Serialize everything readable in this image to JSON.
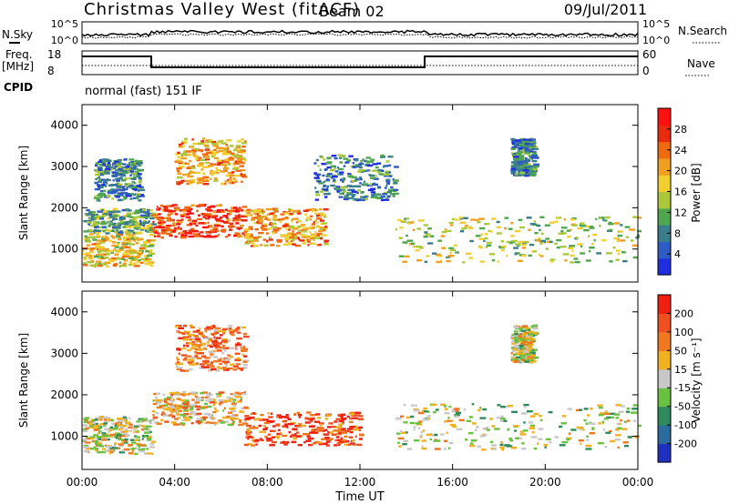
{
  "header": {
    "station": "Christmas Valley West (fitACF)",
    "beam": "Beam 02",
    "date": "09/Jul/2011"
  },
  "top_panels": {
    "nsky_label": "N.Sky",
    "nsearch_label": "N.Search",
    "freq_label_1": "Freq.",
    "freq_label_2": "[MHz]",
    "nave_label": "Nave",
    "cpid_label": "CPID",
    "cpid_text": "normal (fast) 151 IF",
    "noise_ticks": [
      "10^5",
      "10^0"
    ],
    "freq_ticks": [
      "18",
      "8"
    ],
    "nave_ticks": [
      "60",
      "0"
    ]
  },
  "chart_data": [
    {
      "type": "heatmap",
      "title": "",
      "xlabel": "",
      "ylabel": "Slant Range [km]",
      "x_ticks": [
        "00:00",
        "04:00",
        "08:00",
        "12:00",
        "16:00",
        "20:00",
        "00:00"
      ],
      "y_ticks": [
        "1000",
        "2000",
        "3000",
        "4000"
      ],
      "ylim": [
        200,
        4500
      ],
      "xlim_hours": [
        0,
        24
      ],
      "colorbar": {
        "label": "Power [dB]",
        "ticks": [
          "4",
          "8",
          "12",
          "16",
          "20",
          "24",
          "28"
        ],
        "colors": [
          "#1f2fe0",
          "#2e5bc4",
          "#3a7d8c",
          "#4fa64f",
          "#aac83a",
          "#f0d030",
          "#f0a020",
          "#f06a10",
          "#e82a10",
          "#ff1010"
        ]
      },
      "echo_regions": [
        {
          "t0": 0.0,
          "t1": 3.0,
          "r0": 600,
          "r1": 1400,
          "level": 5
        },
        {
          "t0": 0.0,
          "t1": 3.0,
          "r0": 1400,
          "r1": 2000,
          "level": 3
        },
        {
          "t0": 0.5,
          "t1": 2.5,
          "r0": 2200,
          "r1": 3200,
          "level": 2
        },
        {
          "t0": 3.0,
          "t1": 7.0,
          "r0": 1300,
          "r1": 2100,
          "level": 8
        },
        {
          "t0": 4.0,
          "t1": 7.0,
          "r0": 2600,
          "r1": 3700,
          "level": 6
        },
        {
          "t0": 7.0,
          "t1": 10.5,
          "r0": 1100,
          "r1": 2000,
          "level": 6
        },
        {
          "t0": 10.0,
          "t1": 13.5,
          "r0": 2200,
          "r1": 3300,
          "level": 2
        },
        {
          "t0": 13.5,
          "t1": 24.0,
          "r0": 700,
          "r1": 1800,
          "level": 4
        },
        {
          "t0": 18.5,
          "t1": 19.5,
          "r0": 2800,
          "r1": 3700,
          "level": 2
        }
      ]
    },
    {
      "type": "heatmap",
      "title": "",
      "xlabel": "Time UT",
      "ylabel": "Slant Range [km]",
      "x_ticks": [
        "00:00",
        "04:00",
        "08:00",
        "12:00",
        "16:00",
        "20:00",
        "00:00"
      ],
      "y_ticks": [
        "1000",
        "2000",
        "3000",
        "4000"
      ],
      "ylim": [
        200,
        4500
      ],
      "xlim_hours": [
        0,
        24
      ],
      "colorbar": {
        "label": "Velocity [m s⁻¹]",
        "ticks": [
          "200",
          "100",
          "50",
          "15",
          "-15",
          "-50",
          "-100",
          "-200"
        ],
        "colors": [
          "#2030c0",
          "#2c6c9c",
          "#2e8a5a",
          "#6ac040",
          "#c8c8c8",
          "#f0b020",
          "#f07820",
          "#f05020",
          "#f02010"
        ]
      },
      "echo_regions": [
        {
          "t0": 0.0,
          "t1": 3.0,
          "r0": 600,
          "r1": 1500,
          "level": 4
        },
        {
          "t0": 3.0,
          "t1": 7.0,
          "r0": 1300,
          "r1": 2100,
          "level": 5
        },
        {
          "t0": 4.0,
          "t1": 7.0,
          "r0": 2600,
          "r1": 3700,
          "level": 6
        },
        {
          "t0": 7.0,
          "t1": 12.0,
          "r0": 800,
          "r1": 1600,
          "level": 7
        },
        {
          "t0": 13.5,
          "t1": 24.0,
          "r0": 700,
          "r1": 1800,
          "level": 4
        },
        {
          "t0": 18.5,
          "t1": 19.5,
          "r0": 2800,
          "r1": 3700,
          "level": 4
        }
      ]
    }
  ]
}
